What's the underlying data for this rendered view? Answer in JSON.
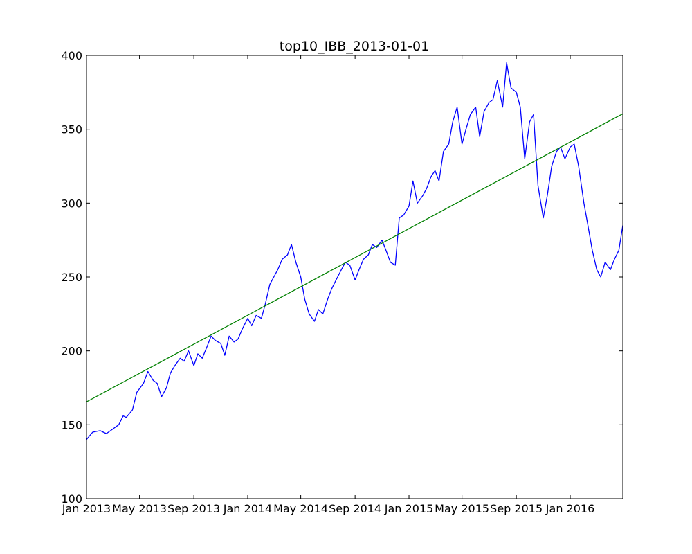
{
  "chart_data": {
    "type": "line",
    "title": "top10_IBB_2013-01-01",
    "xlabel": "",
    "ylabel": "",
    "ylim": [
      100,
      400
    ],
    "xlim": [
      "2013-01-01",
      "2016-04-29"
    ],
    "grid": false,
    "legend": "none",
    "x_ticks": [
      {
        "date": "2013-01-01",
        "label": "Jan 2013"
      },
      {
        "date": "2013-05-01",
        "label": "May 2013"
      },
      {
        "date": "2013-09-01",
        "label": "Sep 2013"
      },
      {
        "date": "2014-01-01",
        "label": "Jan 2014"
      },
      {
        "date": "2014-05-01",
        "label": "May 2014"
      },
      {
        "date": "2014-09-01",
        "label": "Sep 2014"
      },
      {
        "date": "2015-01-01",
        "label": "Jan 2015"
      },
      {
        "date": "2015-05-01",
        "label": "May 2015"
      },
      {
        "date": "2015-09-01",
        "label": "Sep 2015"
      },
      {
        "date": "2016-01-01",
        "label": "Jan 2016"
      }
    ],
    "y_ticks": [
      {
        "value": 100,
        "label": "100"
      },
      {
        "value": 150,
        "label": "150"
      },
      {
        "value": 200,
        "label": "200"
      },
      {
        "value": 250,
        "label": "250"
      },
      {
        "value": 300,
        "label": "300"
      },
      {
        "value": 350,
        "label": "350"
      },
      {
        "value": 400,
        "label": "400"
      }
    ],
    "series": [
      {
        "color": "#0000ff",
        "x": [
          "2013-01-01",
          "2013-01-15",
          "2013-02-01",
          "2013-02-15",
          "2013-03-01",
          "2013-03-15",
          "2013-03-25",
          "2013-04-01",
          "2013-04-15",
          "2013-04-25",
          "2013-05-10",
          "2013-05-20",
          "2013-06-01",
          "2013-06-10",
          "2013-06-20",
          "2013-07-01",
          "2013-07-10",
          "2013-07-20",
          "2013-08-01",
          "2013-08-10",
          "2013-08-20",
          "2013-09-01",
          "2013-09-10",
          "2013-09-20",
          "2013-10-01",
          "2013-10-10",
          "2013-10-20",
          "2013-11-01",
          "2013-11-10",
          "2013-11-20",
          "2013-12-01",
          "2013-12-10",
          "2013-12-20",
          "2014-01-01",
          "2014-01-10",
          "2014-01-20",
          "2014-02-01",
          "2014-02-10",
          "2014-02-20",
          "2014-03-01",
          "2014-03-10",
          "2014-03-20",
          "2014-04-01",
          "2014-04-10",
          "2014-04-20",
          "2014-05-01",
          "2014-05-10",
          "2014-05-20",
          "2014-06-01",
          "2014-06-10",
          "2014-06-20",
          "2014-07-01",
          "2014-07-10",
          "2014-07-20",
          "2014-08-01",
          "2014-08-10",
          "2014-08-20",
          "2014-09-01",
          "2014-09-10",
          "2014-09-20",
          "2014-10-01",
          "2014-10-10",
          "2014-10-20",
          "2014-11-01",
          "2014-11-10",
          "2014-11-20",
          "2014-12-01",
          "2014-12-10",
          "2014-12-20",
          "2015-01-01",
          "2015-01-10",
          "2015-01-20",
          "2015-02-01",
          "2015-02-10",
          "2015-02-20",
          "2015-03-01",
          "2015-03-10",
          "2015-03-20",
          "2015-04-01",
          "2015-04-10",
          "2015-04-20",
          "2015-05-01",
          "2015-05-10",
          "2015-05-20",
          "2015-06-01",
          "2015-06-10",
          "2015-06-20",
          "2015-07-01",
          "2015-07-10",
          "2015-07-20",
          "2015-08-01",
          "2015-08-10",
          "2015-08-20",
          "2015-09-01",
          "2015-09-10",
          "2015-09-20",
          "2015-10-01",
          "2015-10-10",
          "2015-10-20",
          "2015-11-01",
          "2015-11-10",
          "2015-11-20",
          "2015-12-01",
          "2015-12-10",
          "2015-12-20",
          "2016-01-01",
          "2016-01-10",
          "2016-01-20",
          "2016-02-01",
          "2016-02-10",
          "2016-02-20",
          "2016-03-01",
          "2016-03-10",
          "2016-03-20",
          "2016-04-01",
          "2016-04-10",
          "2016-04-20",
          "2016-04-29"
        ],
        "values": [
          140,
          145,
          146,
          144,
          147,
          150,
          156,
          155,
          160,
          172,
          178,
          186,
          180,
          178,
          169,
          175,
          185,
          190,
          195,
          193,
          200,
          190,
          198,
          195,
          203,
          210,
          207,
          205,
          197,
          210,
          206,
          208,
          215,
          222,
          217,
          224,
          222,
          232,
          245,
          250,
          255,
          262,
          265,
          272,
          260,
          250,
          235,
          225,
          220,
          228,
          225,
          235,
          242,
          248,
          255,
          260,
          258,
          248,
          255,
          262,
          265,
          272,
          270,
          275,
          268,
          260,
          258,
          290,
          292,
          298,
          315,
          300,
          305,
          310,
          318,
          322,
          315,
          335,
          340,
          355,
          365,
          340,
          350,
          360,
          365,
          345,
          362,
          368,
          370,
          383,
          365,
          395,
          378,
          375,
          365,
          330,
          355,
          360,
          312,
          290,
          305,
          325,
          335,
          338,
          330,
          338,
          340,
          325,
          300,
          285,
          268,
          255,
          250,
          260,
          255,
          262,
          268,
          285
        ]
      },
      {
        "color": "#008000",
        "x": [
          "2013-01-01",
          "2016-04-29"
        ],
        "values": [
          165.5,
          360.5
        ]
      }
    ]
  }
}
